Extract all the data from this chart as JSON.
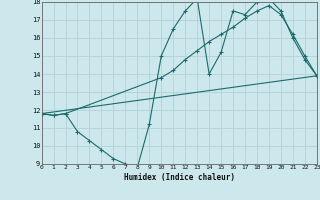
{
  "xlabel": "Humidex (Indice chaleur)",
  "background_color": "#cde8ec",
  "grid_color": "#b8d4d8",
  "line_color": "#1a6b6b",
  "x_min": 0,
  "x_max": 23,
  "y_min": 9,
  "y_max": 18,
  "line1_x": [
    0,
    1,
    2,
    3,
    4,
    5,
    6,
    7,
    8,
    9,
    10,
    11,
    12,
    13,
    14,
    15,
    16,
    17,
    18,
    19,
    20,
    21,
    22,
    23
  ],
  "line1_y": [
    11.8,
    11.7,
    11.8,
    10.8,
    10.3,
    9.8,
    9.3,
    9.0,
    8.8,
    11.2,
    15.0,
    16.5,
    17.5,
    18.2,
    14.0,
    15.2,
    17.5,
    17.3,
    18.0,
    18.2,
    17.5,
    16.0,
    14.8,
    13.9
  ],
  "line2_x": [
    0,
    1,
    2,
    10,
    11,
    12,
    13,
    14,
    15,
    16,
    17,
    18,
    19,
    20,
    21,
    22,
    23
  ],
  "line2_y": [
    11.8,
    11.7,
    11.8,
    13.8,
    14.2,
    14.8,
    15.3,
    15.8,
    16.2,
    16.6,
    17.1,
    17.5,
    17.8,
    17.3,
    16.2,
    15.0,
    13.9
  ],
  "line3_x": [
    0,
    23
  ],
  "line3_y": [
    11.8,
    13.9
  ]
}
